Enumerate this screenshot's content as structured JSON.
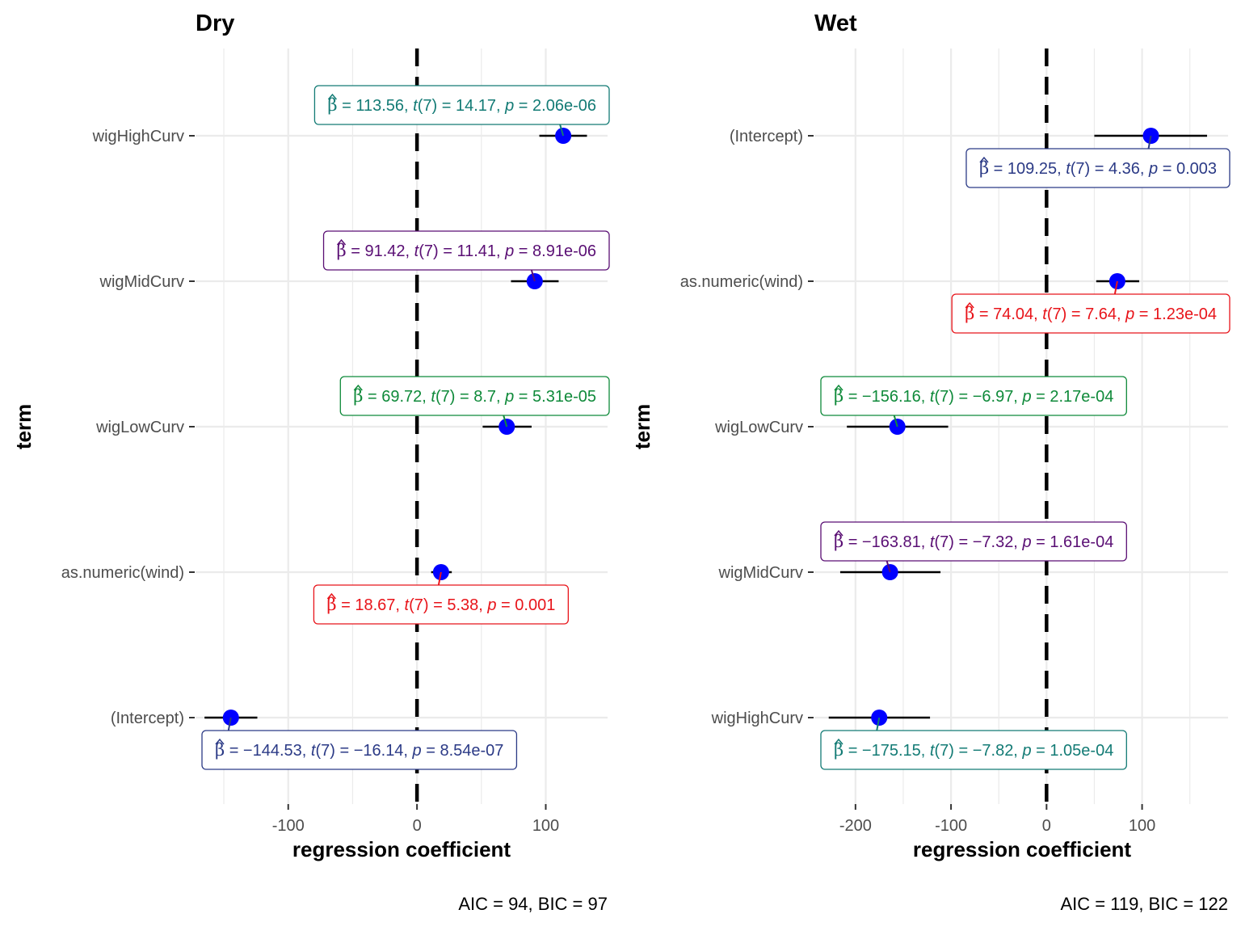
{
  "chart_data": [
    {
      "type": "dot-whisker",
      "title": "Dry",
      "xlabel": "regression coefficient",
      "ylabel": "term",
      "xlim": [
        -172,
        148
      ],
      "x_ticks": [
        -100,
        0,
        100
      ],
      "x_tick_labels": [
        "-100",
        "0",
        "100"
      ],
      "reference_line": 0,
      "grid": true,
      "caption": "AIC = 94, BIC = 97",
      "terms": [
        {
          "term": "wigHighCurv",
          "estimate": 113.56,
          "conf_low": 95,
          "conf_high": 132,
          "beta_text": "= 113.56,",
          "t_text": "(7) = 14.17,",
          "p_text": "= 2.06e-06",
          "color": "#137b75",
          "label_pos": "above"
        },
        {
          "term": "wigMidCurv",
          "estimate": 91.42,
          "conf_low": 73,
          "conf_high": 110,
          "beta_text": "= 91.42,",
          "t_text": "(7) = 11.41,",
          "p_text": "= 8.91e-06",
          "color": "#5a0f74",
          "label_pos": "above"
        },
        {
          "term": "wigLowCurv",
          "estimate": 69.72,
          "conf_low": 51,
          "conf_high": 89,
          "beta_text": "= 69.72,",
          "t_text": "(7) = 8.7,",
          "p_text": "= 5.31e-05",
          "color": "#0f8a3a",
          "label_pos": "above"
        },
        {
          "term": "as.numeric(wind)",
          "estimate": 18.67,
          "conf_low": 11,
          "conf_high": 27,
          "beta_text": "= 18.67,",
          "t_text": "(7) = 5.38,",
          "p_text": "= 0.001",
          "color": "#e8141a",
          "label_pos": "below"
        },
        {
          "term": "(Intercept)",
          "estimate": -144.53,
          "conf_low": -165,
          "conf_high": -124,
          "beta_text": "= −144.53,",
          "t_text": "(7) = −16.14,",
          "p_text": "= 8.54e-07",
          "color": "#2b3a86",
          "label_pos": "below"
        }
      ]
    },
    {
      "type": "dot-whisker",
      "title": "Wet",
      "xlabel": "regression coefficient",
      "ylabel": "term",
      "xlim": [
        -243,
        190
      ],
      "x_ticks": [
        -200,
        -100,
        0,
        100
      ],
      "x_tick_labels": [
        "-200",
        "-100",
        "0",
        "100"
      ],
      "reference_line": 0,
      "grid": true,
      "caption": "AIC = 119, BIC = 122",
      "terms": [
        {
          "term": "(Intercept)",
          "estimate": 109.25,
          "conf_low": 50,
          "conf_high": 168,
          "beta_text": "= 109.25,",
          "t_text": "(7) = 4.36,",
          "p_text": "= 0.003",
          "color": "#2b3a86",
          "label_pos": "below"
        },
        {
          "term": "as.numeric(wind)",
          "estimate": 74.04,
          "conf_low": 52,
          "conf_high": 97,
          "beta_text": "= 74.04,",
          "t_text": "(7) = 7.64,",
          "p_text": "= 1.23e-04",
          "color": "#e8141a",
          "label_pos": "below"
        },
        {
          "term": "wigLowCurv",
          "estimate": -156.16,
          "conf_low": -209,
          "conf_high": -103,
          "beta_text": "= −156.16,",
          "t_text": "(7) = −6.97,",
          "p_text": "= 2.17e-04",
          "color": "#0f8a3a",
          "label_pos": "above"
        },
        {
          "term": "wigMidCurv",
          "estimate": -163.81,
          "conf_low": -216,
          "conf_high": -111,
          "beta_text": "= −163.81,",
          "t_text": "(7) = −7.32,",
          "p_text": "= 1.61e-04",
          "color": "#5a0f74",
          "label_pos": "above"
        },
        {
          "term": "wigHighCurv",
          "estimate": -175.15,
          "conf_low": -228,
          "conf_high": -122,
          "beta_text": "= −175.15,",
          "t_text": "(7) = −7.82,",
          "p_text": "= 1.05e-04",
          "color": "#137b75",
          "label_pos": "below"
        }
      ]
    }
  ],
  "colors": {
    "point": "#0000ff",
    "whisker": "#000000",
    "grid": "#ebebeb",
    "reference_line": "#000000"
  }
}
